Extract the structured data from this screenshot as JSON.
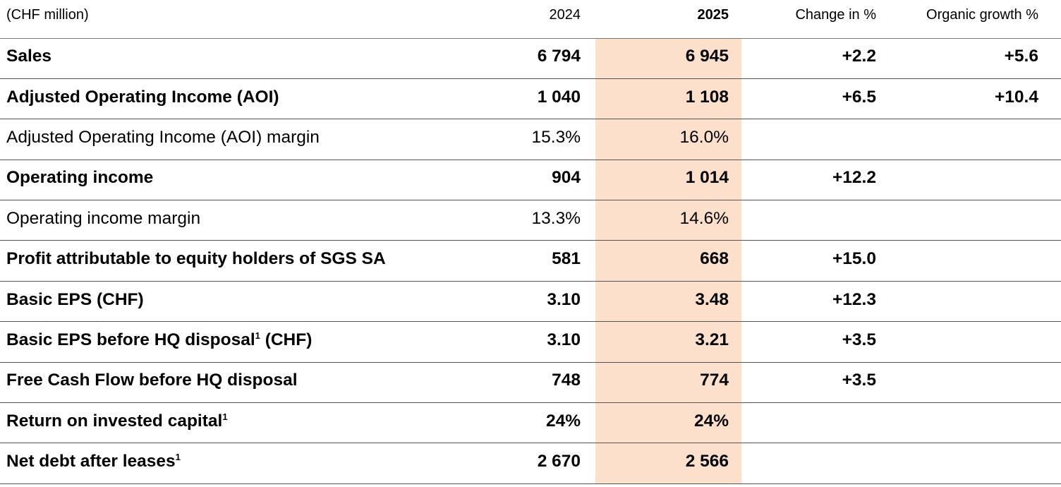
{
  "header": {
    "label": "(CHF million)",
    "y2024": "2024",
    "y2025": "2025",
    "change": "Change in %",
    "organic": "Organic growth %"
  },
  "highlight_color": "#fde0cb",
  "rows": [
    {
      "label": "Sales",
      "sup": "",
      "suffix": "",
      "bold": true,
      "v2024": "6 794",
      "v2025": "6 945",
      "change": "+2.2",
      "organic": "+5.6"
    },
    {
      "label": "Adjusted Operating Income (AOI)",
      "sup": "",
      "suffix": "",
      "bold": true,
      "v2024": "1 040",
      "v2025": "1 108",
      "change": "+6.5",
      "organic": "+10.4"
    },
    {
      "label": "Adjusted Operating Income (AOI) margin",
      "sup": "",
      "suffix": "",
      "bold": false,
      "v2024": "15.3%",
      "v2025": "16.0%",
      "change": "",
      "organic": ""
    },
    {
      "label": "Operating income",
      "sup": "",
      "suffix": "",
      "bold": true,
      "v2024": "904",
      "v2025": "1 014",
      "change": "+12.2",
      "organic": ""
    },
    {
      "label": "Operating income margin",
      "sup": "",
      "suffix": "",
      "bold": false,
      "v2024": "13.3%",
      "v2025": "14.6%",
      "change": "",
      "organic": ""
    },
    {
      "label": "Profit attributable to equity holders of SGS SA",
      "sup": "",
      "suffix": "",
      "bold": true,
      "v2024": "581",
      "v2025": "668",
      "change": "+15.0",
      "organic": ""
    },
    {
      "label": "Basic EPS (CHF)",
      "sup": "",
      "suffix": "",
      "bold": true,
      "v2024": "3.10",
      "v2025": "3.48",
      "change": "+12.3",
      "organic": ""
    },
    {
      "label": "Basic EPS before HQ disposal",
      "sup": "1",
      "suffix": " (CHF)",
      "bold": true,
      "v2024": "3.10",
      "v2025": "3.21",
      "change": "+3.5",
      "organic": ""
    },
    {
      "label": "Free Cash Flow before HQ disposal",
      "sup": "",
      "suffix": "",
      "bold": true,
      "v2024": "748",
      "v2025": "774",
      "change": "+3.5",
      "organic": ""
    },
    {
      "label": "Return on invested capital",
      "sup": "1",
      "suffix": "",
      "bold": true,
      "v2024": "24%",
      "v2025": "24%",
      "change": "",
      "organic": ""
    },
    {
      "label": "Net debt after leases",
      "sup": "1",
      "suffix": "",
      "bold": true,
      "v2024": "2 670",
      "v2025": "2 566",
      "change": "",
      "organic": ""
    }
  ]
}
